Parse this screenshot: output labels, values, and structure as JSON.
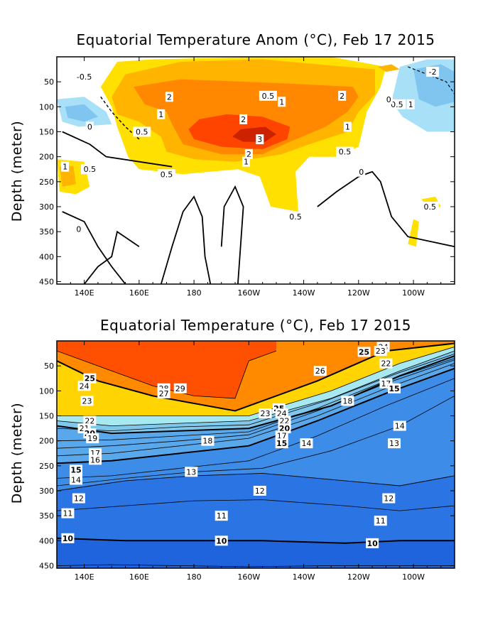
{
  "chart_data": [
    {
      "type": "heatmap",
      "title": "Equatorial Temperature Anom (°C), Feb 17 2015",
      "ylabel": "Depth (meter)",
      "xlabel": "",
      "x_range": [
        130,
        275
      ],
      "y_range": [
        0,
        455
      ],
      "xticks": [
        {
          "lon": 140,
          "label": "140E"
        },
        {
          "lon": 160,
          "label": "160E"
        },
        {
          "lon": 180,
          "label": "180"
        },
        {
          "lon": 200,
          "label": "160W"
        },
        {
          "lon": 220,
          "label": "140W"
        },
        {
          "lon": 240,
          "label": "120W"
        },
        {
          "lon": 260,
          "label": "100W"
        }
      ],
      "yticks": [
        50,
        100,
        150,
        200,
        250,
        300,
        350,
        400,
        450
      ],
      "contour_levels": [
        -2,
        -1.5,
        -1,
        -0.5,
        0,
        0.5,
        1,
        2,
        3
      ],
      "contour_labels": [
        {
          "text": "2",
          "lon": 171,
          "depth": 80
        },
        {
          "text": "0.5",
          "lon": 207,
          "depth": 78
        },
        {
          "text": "1",
          "lon": 212,
          "depth": 90
        },
        {
          "text": "2",
          "lon": 234,
          "depth": 78
        },
        {
          "text": "1",
          "lon": 168,
          "depth": 115
        },
        {
          "text": "0.5",
          "lon": 161,
          "depth": 150
        },
        {
          "text": "2",
          "lon": 198,
          "depth": 125
        },
        {
          "text": "3",
          "lon": 204,
          "depth": 165
        },
        {
          "text": "2",
          "lon": 200,
          "depth": 195
        },
        {
          "text": "1",
          "lon": 199,
          "depth": 210
        },
        {
          "text": "1",
          "lon": 236,
          "depth": 140
        },
        {
          "text": "0.5",
          "lon": 235,
          "depth": 190
        },
        {
          "text": "0.5",
          "lon": 170,
          "depth": 235
        },
        {
          "text": "1",
          "lon": 133,
          "depth": 220
        },
        {
          "text": "0.5",
          "lon": 142,
          "depth": 225
        },
        {
          "text": "0.5",
          "lon": 217,
          "depth": 320
        },
        {
          "text": "0.5",
          "lon": 266,
          "depth": 300
        },
        {
          "text": "0",
          "lon": 241,
          "depth": 230
        },
        {
          "text": "0",
          "lon": 138,
          "depth": 345
        },
        {
          "text": "0",
          "lon": 142,
          "depth": 140
        },
        {
          "text": "0.5",
          "lon": 254,
          "depth": 95
        },
        {
          "text": "1",
          "lon": 259,
          "depth": 95
        },
        {
          "text": "-2",
          "lon": 267,
          "depth": 30
        },
        {
          "text": "-0.5",
          "lon": 140,
          "depth": 40
        },
        {
          "text": "0",
          "lon": 251,
          "depth": 85
        }
      ],
      "cells_note": "anomaly field: warm core ~3°C near 160W 150m; cool patches near 140E 100m and 100W 50m"
    },
    {
      "type": "heatmap",
      "title": "Equatorial Temperature (°C), Feb 17 2015",
      "ylabel": "Depth (meter)",
      "xlabel": "",
      "x_range": [
        130,
        275
      ],
      "y_range": [
        0,
        455
      ],
      "xticks": [
        {
          "lon": 140,
          "label": "140E"
        },
        {
          "lon": 160,
          "label": "160E"
        },
        {
          "lon": 180,
          "label": "180"
        },
        {
          "lon": 200,
          "label": "160W"
        },
        {
          "lon": 220,
          "label": "140W"
        },
        {
          "lon": 240,
          "label": "120W"
        },
        {
          "lon": 260,
          "label": "100W"
        }
      ],
      "yticks": [
        50,
        100,
        150,
        200,
        250,
        300,
        350,
        400,
        450
      ],
      "isotherms": [
        {
          "level": 28,
          "depths": [
            [
              130,
              20
            ],
            [
              150,
              60
            ],
            [
              165,
              90
            ],
            [
              180,
              110
            ],
            [
              195,
              115
            ],
            [
              200,
              40
            ],
            [
              210,
              20
            ]
          ]
        },
        {
          "level": 25,
          "depths": [
            [
              130,
              40
            ],
            [
              145,
              80
            ],
            [
              165,
              110
            ],
            [
              195,
              140
            ],
            [
              225,
              80
            ],
            [
              250,
              20
            ],
            [
              275,
              5
            ]
          ]
        },
        {
          "level": 20,
          "depths": [
            [
              130,
              170
            ],
            [
              150,
              185
            ],
            [
              175,
              180
            ],
            [
              200,
              175
            ],
            [
              230,
              130
            ],
            [
              255,
              70
            ],
            [
              275,
              30
            ]
          ]
        },
        {
          "level": 15,
          "depths": [
            [
              130,
              245
            ],
            [
              150,
              240
            ],
            [
              175,
              225
            ],
            [
              200,
              210
            ],
            [
              225,
              160
            ],
            [
              250,
              105
            ],
            [
              275,
              55
            ]
          ]
        },
        {
          "level": 12,
          "depths": [
            [
              130,
              300
            ],
            [
              155,
              280
            ],
            [
              180,
              270
            ],
            [
              205,
              265
            ],
            [
              235,
              280
            ],
            [
              255,
              290
            ],
            [
              275,
              270
            ]
          ]
        },
        {
          "level": 10,
          "depths": [
            [
              130,
              395
            ],
            [
              155,
              400
            ],
            [
              180,
              400
            ],
            [
              205,
              400
            ],
            [
              235,
              405
            ],
            [
              255,
              400
            ],
            [
              275,
              400
            ]
          ]
        }
      ],
      "contour_labels": [
        {
          "text": "26",
          "lon": 226,
          "depth": 60
        },
        {
          "text": "25",
          "lon": 242,
          "depth": 22
        },
        {
          "text": "24",
          "lon": 249,
          "depth": 12
        },
        {
          "text": "23",
          "lon": 248,
          "depth": 20
        },
        {
          "text": "22",
          "lon": 250,
          "depth": 45
        },
        {
          "text": "25",
          "lon": 142,
          "depth": 75
        },
        {
          "text": "24",
          "lon": 140,
          "depth": 90
        },
        {
          "text": "23",
          "lon": 141,
          "depth": 120
        },
        {
          "text": "28",
          "lon": 169,
          "depth": 95
        },
        {
          "text": "29",
          "lon": 175,
          "depth": 95
        },
        {
          "text": "27",
          "lon": 169,
          "depth": 105
        },
        {
          "text": "22",
          "lon": 142,
          "depth": 160
        },
        {
          "text": "21",
          "lon": 140,
          "depth": 175
        },
        {
          "text": "20",
          "lon": 142,
          "depth": 185
        },
        {
          "text": "19",
          "lon": 143,
          "depth": 195
        },
        {
          "text": "18",
          "lon": 185,
          "depth": 200
        },
        {
          "text": "17",
          "lon": 144,
          "depth": 225
        },
        {
          "text": "16",
          "lon": 144,
          "depth": 238
        },
        {
          "text": "15",
          "lon": 137,
          "depth": 258
        },
        {
          "text": "14",
          "lon": 137,
          "depth": 278
        },
        {
          "text": "13",
          "lon": 179,
          "depth": 262
        },
        {
          "text": "12",
          "lon": 138,
          "depth": 315
        },
        {
          "text": "11",
          "lon": 134,
          "depth": 345
        },
        {
          "text": "10",
          "lon": 134,
          "depth": 395
        },
        {
          "text": "25",
          "lon": 211,
          "depth": 135
        },
        {
          "text": "24",
          "lon": 212,
          "depth": 145
        },
        {
          "text": "23",
          "lon": 206,
          "depth": 145
        },
        {
          "text": "22",
          "lon": 213,
          "depth": 160
        },
        {
          "text": "20",
          "lon": 213,
          "depth": 175
        },
        {
          "text": "17",
          "lon": 212,
          "depth": 190
        },
        {
          "text": "15",
          "lon": 212,
          "depth": 205
        },
        {
          "text": "14",
          "lon": 221,
          "depth": 205
        },
        {
          "text": "18",
          "lon": 236,
          "depth": 120
        },
        {
          "text": "17",
          "lon": 250,
          "depth": 85
        },
        {
          "text": "15",
          "lon": 253,
          "depth": 95
        },
        {
          "text": "14",
          "lon": 255,
          "depth": 170
        },
        {
          "text": "13",
          "lon": 253,
          "depth": 205
        },
        {
          "text": "12",
          "lon": 204,
          "depth": 300
        },
        {
          "text": "12",
          "lon": 251,
          "depth": 315
        },
        {
          "text": "11",
          "lon": 190,
          "depth": 350
        },
        {
          "text": "11",
          "lon": 248,
          "depth": 360
        },
        {
          "text": "10",
          "lon": 190,
          "depth": 400
        },
        {
          "text": "10",
          "lon": 245,
          "depth": 405
        }
      ]
    }
  ],
  "colors": {
    "warm3": "#cc2200",
    "warm2": "#ff4400",
    "warm1": "#ff8800",
    "warm05": "#ffb400",
    "warm0": "#ffe000",
    "cool05": "#a8e0f8",
    "cool1": "#80c4f0",
    "t28": "#ff4f00",
    "t25": "#ff8a00",
    "t23": "#ffd400",
    "t21": "#a8e8f0",
    "t19": "#7fc8ec",
    "t15": "#5aa8ec",
    "t12": "#3c8ce8",
    "t10": "#2a74e4",
    "t9": "#1f64dc"
  }
}
